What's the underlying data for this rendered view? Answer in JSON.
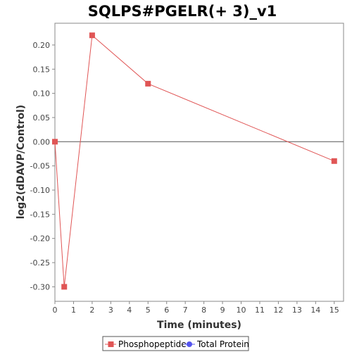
{
  "chart_data": {
    "type": "line",
    "title": "SQLPS#PGELR(+ 3)_v1",
    "xlabel": "Time (minutes)",
    "ylabel": "log2(dDAVP/Control)",
    "xlim": [
      0,
      15.5
    ],
    "ylim": [
      -0.33,
      0.245
    ],
    "x_ticks": [
      0,
      1,
      2,
      3,
      4,
      5,
      6,
      7,
      8,
      9,
      10,
      11,
      12,
      13,
      14,
      15
    ],
    "y_ticks": [
      0.2,
      0.15,
      0.1,
      0.05,
      0.0,
      -0.05,
      -0.1,
      -0.15,
      -0.2,
      -0.25,
      -0.3
    ],
    "y_tick_labels": [
      "0.20",
      "0.15",
      "0.10",
      "0.05",
      "0.00",
      "-0.05",
      "-0.10",
      "-0.15",
      "-0.20",
      "-0.25",
      "-0.30"
    ],
    "grid": false,
    "zero_line": true,
    "legend_position": "bottom",
    "series": [
      {
        "name": "Phosphopeptide",
        "color": "#e05555",
        "marker": "square",
        "x": [
          0,
          0.5,
          2,
          5,
          15
        ],
        "values": [
          0.0,
          -0.3,
          0.22,
          0.12,
          -0.04
        ]
      },
      {
        "name": "Total Protein",
        "color": "#5555ee",
        "marker": "circle",
        "x": [],
        "values": []
      }
    ]
  }
}
